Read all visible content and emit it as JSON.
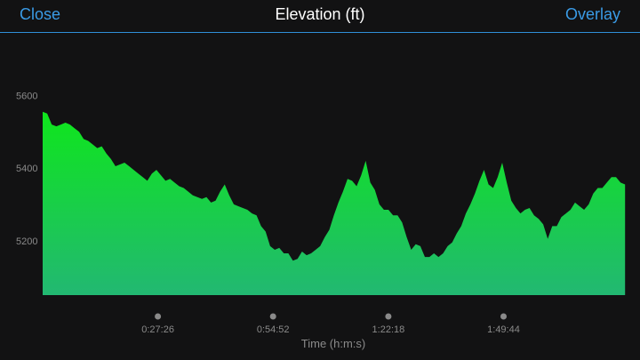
{
  "header": {
    "close_label": "Close",
    "title": "Elevation (ft)",
    "overlay_label": "Overlay"
  },
  "colors": {
    "accent": "#3a9be6",
    "background": "#121213",
    "fill_top": "#0fe61c",
    "fill_bottom": "#22b872",
    "tick_dot": "#8a8a8a",
    "label": "#8a8a8a"
  },
  "chart_data": {
    "type": "area",
    "title": "Elevation (ft)",
    "xlabel": "Time (h:m:s)",
    "ylabel": "",
    "x_unit": "seconds",
    "xlim": [
      0,
      8330
    ],
    "ylim": [
      5050,
      5650
    ],
    "yticks": [
      5200,
      5400,
      5600
    ],
    "xticks": [
      {
        "value": 1646,
        "label": "0:27:26"
      },
      {
        "value": 3292,
        "label": "0:54:52"
      },
      {
        "value": 4938,
        "label": "1:22:18"
      },
      {
        "value": 6584,
        "label": "1:49:44"
      }
    ],
    "grid": false,
    "legend": "none",
    "series": [
      {
        "x": [
          0,
          65,
          130,
          195,
          260,
          325,
          390,
          455,
          520,
          585,
          650,
          715,
          780,
          845,
          910,
          975,
          1040,
          1105,
          1170,
          1235,
          1300,
          1365,
          1430,
          1495,
          1560,
          1625,
          1690,
          1755,
          1820,
          1885,
          1950,
          2015,
          2080,
          2145,
          2210,
          2275,
          2340,
          2405,
          2470,
          2535,
          2600,
          2665,
          2730,
          2795,
          2860,
          2925,
          2990,
          3055,
          3120,
          3185,
          3250,
          3315,
          3380,
          3445,
          3510,
          3575,
          3640,
          3705,
          3770,
          3835,
          3900,
          3965,
          4030,
          4095,
          4160,
          4225,
          4290,
          4355,
          4420,
          4485,
          4550,
          4615,
          4680,
          4745,
          4810,
          4875,
          4940,
          5005,
          5070,
          5135,
          5200,
          5265,
          5330,
          5395,
          5460,
          5525,
          5590,
          5655,
          5720,
          5785,
          5850,
          5915,
          5980,
          6045,
          6110,
          6175,
          6240,
          6305,
          6370,
          6435,
          6500,
          6565,
          6630,
          6695,
          6760,
          6825,
          6890,
          6955,
          7020,
          7085,
          7150,
          7215,
          7280,
          7345,
          7410,
          7475,
          7540,
          7605,
          7670,
          7735,
          7800,
          7865,
          7930,
          7995,
          8060,
          8125,
          8190,
          8255,
          8320
        ],
        "values": [
          5555,
          5550,
          5520,
          5515,
          5520,
          5525,
          5520,
          5510,
          5500,
          5480,
          5475,
          5465,
          5455,
          5460,
          5440,
          5425,
          5405,
          5410,
          5415,
          5405,
          5395,
          5385,
          5375,
          5365,
          5385,
          5395,
          5380,
          5365,
          5370,
          5360,
          5350,
          5345,
          5335,
          5325,
          5320,
          5315,
          5320,
          5305,
          5310,
          5335,
          5355,
          5325,
          5300,
          5295,
          5290,
          5285,
          5275,
          5270,
          5240,
          5225,
          5185,
          5175,
          5180,
          5165,
          5165,
          5145,
          5150,
          5170,
          5160,
          5165,
          5175,
          5185,
          5210,
          5230,
          5270,
          5305,
          5335,
          5370,
          5365,
          5350,
          5380,
          5420,
          5360,
          5340,
          5300,
          5285,
          5285,
          5270,
          5270,
          5250,
          5210,
          5175,
          5190,
          5185,
          5155,
          5155,
          5165,
          5155,
          5165,
          5185,
          5195,
          5220,
          5240,
          5275,
          5300,
          5330,
          5365,
          5395,
          5355,
          5345,
          5375,
          5415,
          5360,
          5310,
          5290,
          5275,
          5285,
          5290,
          5270,
          5260,
          5245,
          5205,
          5240,
          5240,
          5265,
          5275,
          5285,
          5305,
          5295,
          5285,
          5300,
          5330,
          5345,
          5345,
          5360,
          5375,
          5375,
          5360,
          5355
        ]
      }
    ]
  }
}
